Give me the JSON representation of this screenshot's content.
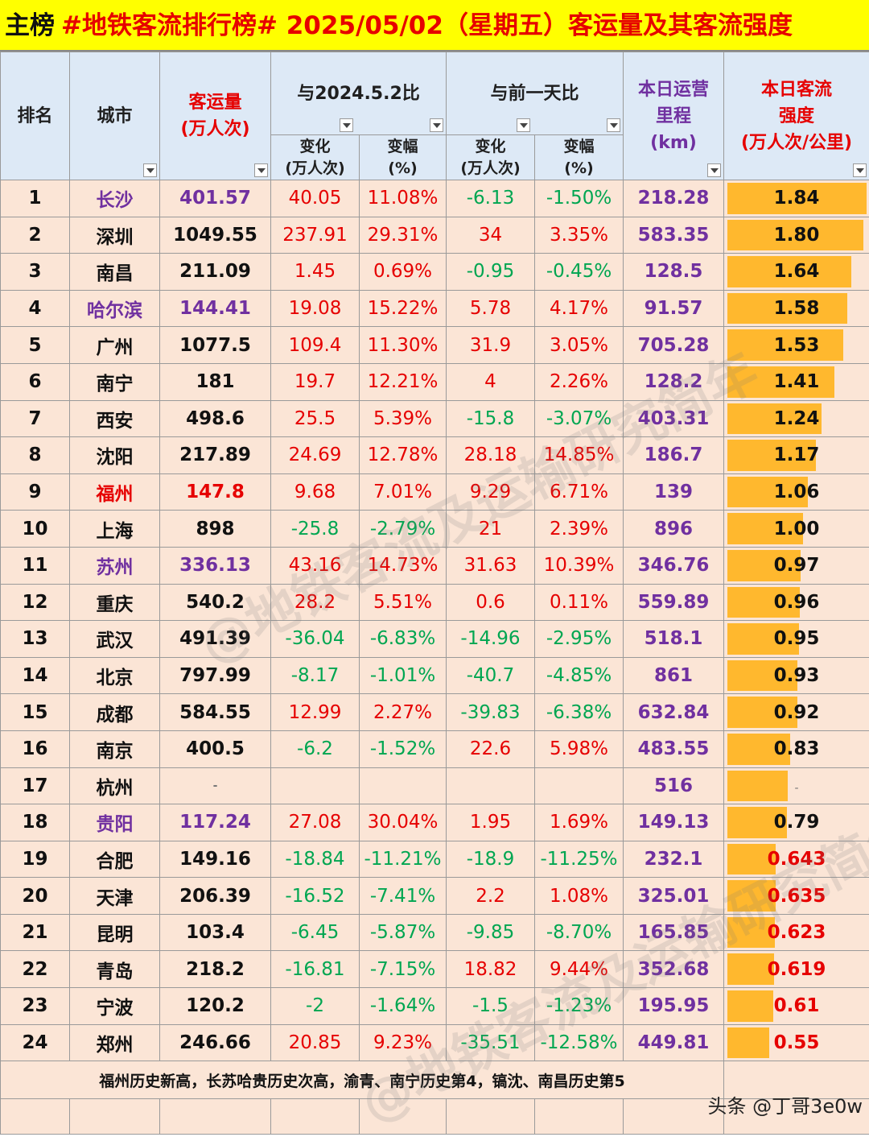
{
  "title": {
    "prefix": "主榜",
    "main": "#地铁客流排行榜# 2025/05/02（星期五）客运量及其客流强度"
  },
  "headers": {
    "rank": "排名",
    "city": "城市",
    "volume": "客运量\n(万人次)",
    "vs_last_year": "与2024.5.2比",
    "vs_prev_day": "与前一天比",
    "change": "变化\n(万人次)",
    "pct": "变幅\n(%)",
    "mileage": "本日运营\n里程\n(km)",
    "intensity": "本日客流\n强度\n(万人次/公里)"
  },
  "intensity_max": 1.84,
  "rows": [
    {
      "rank": "1",
      "city": "长沙",
      "city_color": "purple",
      "volume": "401.57",
      "yoy_chg": "40.05",
      "yoy_pct": "11.08%",
      "dod_chg": "-6.13",
      "dod_pct": "-1.50%",
      "km": "218.28",
      "intensity": "1.84",
      "intensity_value": 1.84
    },
    {
      "rank": "2",
      "city": "深圳",
      "city_color": "",
      "volume": "1049.55",
      "yoy_chg": "237.91",
      "yoy_pct": "29.31%",
      "dod_chg": "34",
      "dod_pct": "3.35%",
      "km": "583.35",
      "intensity": "1.80",
      "intensity_value": 1.8
    },
    {
      "rank": "3",
      "city": "南昌",
      "city_color": "",
      "volume": "211.09",
      "yoy_chg": "1.45",
      "yoy_pct": "0.69%",
      "dod_chg": "-0.95",
      "dod_pct": "-0.45%",
      "km": "128.5",
      "intensity": "1.64",
      "intensity_value": 1.64
    },
    {
      "rank": "4",
      "city": "哈尔滨",
      "city_color": "purple",
      "volume": "144.41",
      "yoy_chg": "19.08",
      "yoy_pct": "15.22%",
      "dod_chg": "5.78",
      "dod_pct": "4.17%",
      "km": "91.57",
      "intensity": "1.58",
      "intensity_value": 1.58
    },
    {
      "rank": "5",
      "city": "广州",
      "city_color": "",
      "volume": "1077.5",
      "yoy_chg": "109.4",
      "yoy_pct": "11.30%",
      "dod_chg": "31.9",
      "dod_pct": "3.05%",
      "km": "705.28",
      "intensity": "1.53",
      "intensity_value": 1.53
    },
    {
      "rank": "6",
      "city": "南宁",
      "city_color": "",
      "volume": "181",
      "yoy_chg": "19.7",
      "yoy_pct": "12.21%",
      "dod_chg": "4",
      "dod_pct": "2.26%",
      "km": "128.2",
      "intensity": "1.41",
      "intensity_value": 1.41
    },
    {
      "rank": "7",
      "city": "西安",
      "city_color": "",
      "volume": "498.6",
      "yoy_chg": "25.5",
      "yoy_pct": "5.39%",
      "dod_chg": "-15.8",
      "dod_pct": "-3.07%",
      "km": "403.31",
      "intensity": "1.24",
      "intensity_value": 1.24
    },
    {
      "rank": "8",
      "city": "沈阳",
      "city_color": "",
      "volume": "217.89",
      "yoy_chg": "24.69",
      "yoy_pct": "12.78%",
      "dod_chg": "28.18",
      "dod_pct": "14.85%",
      "km": "186.7",
      "intensity": "1.17",
      "intensity_value": 1.17
    },
    {
      "rank": "9",
      "city": "福州",
      "city_color": "red",
      "volume": "147.8",
      "yoy_chg": "9.68",
      "yoy_pct": "7.01%",
      "dod_chg": "9.29",
      "dod_pct": "6.71%",
      "km": "139",
      "intensity": "1.06",
      "intensity_value": 1.06
    },
    {
      "rank": "10",
      "city": "上海",
      "city_color": "",
      "volume": "898",
      "yoy_chg": "-25.8",
      "yoy_pct": "-2.79%",
      "dod_chg": "21",
      "dod_pct": "2.39%",
      "km": "896",
      "intensity": "1.00",
      "intensity_value": 1.0
    },
    {
      "rank": "11",
      "city": "苏州",
      "city_color": "purple",
      "volume": "336.13",
      "yoy_chg": "43.16",
      "yoy_pct": "14.73%",
      "dod_chg": "31.63",
      "dod_pct": "10.39%",
      "km": "346.76",
      "intensity": "0.97",
      "intensity_value": 0.97
    },
    {
      "rank": "12",
      "city": "重庆",
      "city_color": "",
      "volume": "540.2",
      "yoy_chg": "28.2",
      "yoy_pct": "5.51%",
      "dod_chg": "0.6",
      "dod_pct": "0.11%",
      "km": "559.89",
      "intensity": "0.96",
      "intensity_value": 0.96
    },
    {
      "rank": "13",
      "city": "武汉",
      "city_color": "",
      "volume": "491.39",
      "yoy_chg": "-36.04",
      "yoy_pct": "-6.83%",
      "dod_chg": "-14.96",
      "dod_pct": "-2.95%",
      "km": "518.1",
      "intensity": "0.95",
      "intensity_value": 0.95
    },
    {
      "rank": "14",
      "city": "北京",
      "city_color": "",
      "volume": "797.99",
      "yoy_chg": "-8.17",
      "yoy_pct": "-1.01%",
      "dod_chg": "-40.7",
      "dod_pct": "-4.85%",
      "km": "861",
      "intensity": "0.93",
      "intensity_value": 0.93
    },
    {
      "rank": "15",
      "city": "成都",
      "city_color": "",
      "volume": "584.55",
      "yoy_chg": "12.99",
      "yoy_pct": "2.27%",
      "dod_chg": "-39.83",
      "dod_pct": "-6.38%",
      "km": "632.84",
      "intensity": "0.92",
      "intensity_value": 0.92
    },
    {
      "rank": "16",
      "city": "南京",
      "city_color": "",
      "volume": "400.5",
      "yoy_chg": "-6.2",
      "yoy_pct": "-1.52%",
      "dod_chg": "22.6",
      "dod_pct": "5.98%",
      "km": "483.55",
      "intensity": "0.83",
      "intensity_value": 0.83
    },
    {
      "rank": "17",
      "city": "杭州",
      "city_color": "",
      "volume": "-",
      "yoy_chg": "",
      "yoy_pct": "",
      "dod_chg": "",
      "dod_pct": "",
      "km": "516",
      "intensity": "-",
      "intensity_value": 0.8
    },
    {
      "rank": "18",
      "city": "贵阳",
      "city_color": "purple",
      "volume": "117.24",
      "yoy_chg": "27.08",
      "yoy_pct": "30.04%",
      "dod_chg": "1.95",
      "dod_pct": "1.69%",
      "km": "149.13",
      "intensity": "0.79",
      "intensity_value": 0.79
    },
    {
      "rank": "19",
      "city": "合肥",
      "city_color": "",
      "volume": "149.16",
      "yoy_chg": "-18.84",
      "yoy_pct": "-11.21%",
      "dod_chg": "-18.9",
      "dod_pct": "-11.25%",
      "km": "232.1",
      "intensity": "0.643",
      "intensity_value": 0.643
    },
    {
      "rank": "20",
      "city": "天津",
      "city_color": "",
      "volume": "206.39",
      "yoy_chg": "-16.52",
      "yoy_pct": "-7.41%",
      "dod_chg": "2.2",
      "dod_pct": "1.08%",
      "km": "325.01",
      "intensity": "0.635",
      "intensity_value": 0.635
    },
    {
      "rank": "21",
      "city": "昆明",
      "city_color": "",
      "volume": "103.4",
      "yoy_chg": "-6.45",
      "yoy_pct": "-5.87%",
      "dod_chg": "-9.85",
      "dod_pct": "-8.70%",
      "km": "165.85",
      "intensity": "0.623",
      "intensity_value": 0.623
    },
    {
      "rank": "22",
      "city": "青岛",
      "city_color": "",
      "volume": "218.2",
      "yoy_chg": "-16.81",
      "yoy_pct": "-7.15%",
      "dod_chg": "18.82",
      "dod_pct": "9.44%",
      "km": "352.68",
      "intensity": "0.619",
      "intensity_value": 0.619
    },
    {
      "rank": "23",
      "city": "宁波",
      "city_color": "",
      "volume": "120.2",
      "yoy_chg": "-2",
      "yoy_pct": "-1.64%",
      "dod_chg": "-1.5",
      "dod_pct": "-1.23%",
      "km": "195.95",
      "intensity": "0.61",
      "intensity_value": 0.61
    },
    {
      "rank": "24",
      "city": "郑州",
      "city_color": "",
      "volume": "246.66",
      "yoy_chg": "20.85",
      "yoy_pct": "9.23%",
      "dod_chg": "-35.51",
      "dod_pct": "-12.58%",
      "km": "449.81",
      "intensity": "0.55",
      "intensity_value": 0.55
    }
  ],
  "note": "福州历史新高，长苏哈贵历史次高，渝青、南宁历史第4，镐沈、南昌历史第5",
  "source_watermark": "头条 @丁哥3e0w",
  "overlay_watermark": "@地铁客流及运输研究简年",
  "colors": {
    "title_bg": "#ffff00",
    "header_bg": "#dde9f6",
    "row_bg": "#fbe5d6",
    "bar": "#ffb82e",
    "up": "#e60000",
    "down": "#00a651",
    "purple": "#7030a0"
  }
}
